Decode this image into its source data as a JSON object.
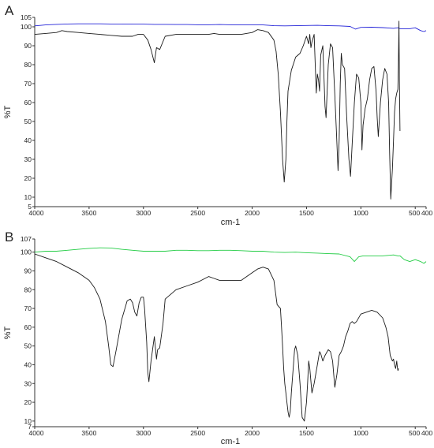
{
  "chart_data": [
    {
      "type": "line",
      "panel_label": "A",
      "xlabel": "cm-1",
      "ylabel": "%T",
      "xlim": [
        4000,
        400
      ],
      "ylim": [
        5,
        105
      ],
      "x_ticks": [
        4000,
        3500,
        3000,
        2500,
        2000,
        1500,
        1000,
        500,
        400
      ],
      "x_tick_labels": [
        "4000",
        "3500",
        "3000",
        "2500",
        "2000",
        "1500",
        "1000",
        "500",
        "400"
      ],
      "y_ticks": [
        5,
        10,
        20,
        30,
        40,
        50,
        60,
        70,
        80,
        90,
        100,
        105
      ],
      "y_tick_labels": [
        "5",
        "10",
        "20",
        "30",
        "40",
        "50",
        "60",
        "70",
        "80",
        "90",
        "100",
        "105"
      ],
      "grid": false,
      "series": [
        {
          "color": "#2424d8",
          "x": [
            4000,
            3900,
            3800,
            3700,
            3600,
            3500,
            3400,
            3300,
            3200,
            3100,
            3000,
            2900,
            2800,
            2700,
            2600,
            2500,
            2400,
            2300,
            2200,
            2100,
            2000,
            1900,
            1800,
            1700,
            1600,
            1500,
            1400,
            1300,
            1200,
            1100,
            1050,
            1000,
            900,
            800,
            700,
            660,
            640,
            600,
            550,
            500,
            450,
            420,
            400
          ],
          "y": [
            100.5,
            101,
            101.3,
            101.5,
            101.6,
            101.6,
            101.6,
            101.5,
            101.5,
            101.4,
            101.4,
            101.3,
            101.3,
            101.2,
            101.2,
            101.1,
            101.1,
            101.2,
            101.1,
            101,
            101,
            101,
            100.6,
            100.5,
            100.6,
            100.7,
            100.8,
            100.6,
            100.5,
            100.2,
            98.8,
            99.7,
            99.8,
            99.6,
            99.2,
            99.5,
            99,
            99,
            99,
            99.5,
            98,
            97.5,
            98
          ]
        },
        {
          "color": "#1a1a1a",
          "x": [
            4000,
            3900,
            3800,
            3750,
            3700,
            3600,
            3500,
            3400,
            3300,
            3200,
            3100,
            3050,
            3000,
            2960,
            2930,
            2900,
            2880,
            2850,
            2800,
            2700,
            2600,
            2500,
            2400,
            2350,
            2300,
            2200,
            2100,
            2000,
            1950,
            1900,
            1850,
            1800,
            1780,
            1760,
            1740,
            1720,
            1705,
            1690,
            1680,
            1670,
            1640,
            1600,
            1560,
            1530,
            1500,
            1480,
            1470,
            1460,
            1450,
            1430,
            1410,
            1400,
            1390,
            1380,
            1370,
            1350,
            1330,
            1320,
            1300,
            1280,
            1260,
            1240,
            1225,
            1210,
            1200,
            1190,
            1180,
            1170,
            1150,
            1130,
            1110,
            1095,
            1080,
            1060,
            1040,
            1020,
            1000,
            990,
            980,
            960,
            940,
            920,
            900,
            880,
            860,
            850,
            840,
            820,
            800,
            780,
            760,
            745,
            735,
            725,
            710,
            700,
            690,
            680,
            670,
            660,
            655,
            650,
            645,
            640
          ],
          "y": [
            96,
            96.5,
            97,
            98,
            97.5,
            97,
            96.5,
            96,
            95.5,
            95,
            95,
            96,
            96,
            93,
            88,
            81,
            89,
            88,
            95,
            96,
            96,
            96,
            96,
            96.5,
            96,
            96,
            96,
            97,
            98.5,
            98,
            97,
            93,
            87,
            75,
            55,
            30,
            18,
            30,
            50,
            66,
            77,
            84,
            86,
            90,
            95,
            91,
            96,
            89,
            92,
            96,
            65,
            75,
            72,
            66,
            85,
            90,
            58,
            52,
            80,
            91,
            89,
            64,
            45,
            24,
            40,
            70,
            86,
            80,
            78,
            52,
            30,
            21,
            38,
            60,
            75,
            73,
            60,
            35,
            48,
            57,
            62,
            72,
            78,
            79,
            66,
            52,
            42,
            60,
            72,
            78,
            75,
            60,
            33,
            9,
            25,
            40,
            55,
            62,
            65,
            67,
            80,
            103,
            70,
            45
          ]
        }
      ]
    },
    {
      "type": "line",
      "panel_label": "B",
      "xlabel": "cm-1",
      "ylabel": "%T",
      "xlim": [
        4000,
        400
      ],
      "ylim": [
        7,
        107
      ],
      "x_ticks": [
        4000,
        3500,
        3000,
        2500,
        2000,
        1500,
        1000,
        500,
        400
      ],
      "x_tick_labels": [
        "4000",
        "3500",
        "3000",
        "2500",
        "2000",
        "1500",
        "1000",
        "500",
        "400"
      ],
      "y_ticks": [
        7,
        10,
        20,
        30,
        40,
        50,
        60,
        70,
        80,
        90,
        100,
        107
      ],
      "y_tick_labels": [
        "7",
        "10",
        "20",
        "30",
        "40",
        "50",
        "60",
        "70",
        "80",
        "90",
        "100",
        "107"
      ],
      "grid": false,
      "series": [
        {
          "color": "#22cc44",
          "x": [
            4000,
            3900,
            3800,
            3700,
            3600,
            3500,
            3400,
            3300,
            3200,
            3100,
            3000,
            2900,
            2800,
            2700,
            2600,
            2500,
            2400,
            2300,
            2200,
            2100,
            2000,
            1900,
            1800,
            1700,
            1600,
            1500,
            1400,
            1300,
            1200,
            1100,
            1060,
            1020,
            980,
            900,
            800,
            700,
            660,
            640,
            600,
            550,
            500,
            450,
            420,
            400
          ],
          "y": [
            100,
            100.5,
            100.5,
            101,
            101.5,
            102,
            102.3,
            102.2,
            101.5,
            101,
            100.5,
            100.5,
            100.5,
            101,
            101,
            100.8,
            100.8,
            101,
            101,
            100.8,
            100.5,
            100.5,
            100,
            99.8,
            100,
            99.7,
            99.5,
            99.2,
            99,
            97.5,
            95,
            97.5,
            98,
            98,
            98,
            98.5,
            98,
            98,
            96,
            95,
            96,
            95,
            94,
            95
          ]
        },
        {
          "color": "#1a1a1a",
          "x": [
            4000,
            3900,
            3800,
            3700,
            3600,
            3500,
            3450,
            3400,
            3350,
            3320,
            3300,
            3280,
            3250,
            3200,
            3150,
            3120,
            3100,
            3080,
            3060,
            3040,
            3020,
            3000,
            2990,
            2970,
            2960,
            2950,
            2930,
            2900,
            2880,
            2870,
            2850,
            2820,
            2800,
            2700,
            2600,
            2500,
            2400,
            2350,
            2300,
            2200,
            2100,
            2000,
            1950,
            1900,
            1850,
            1800,
            1770,
            1740,
            1730,
            1720,
            1710,
            1700,
            1690,
            1680,
            1670,
            1660,
            1650,
            1640,
            1620,
            1610,
            1600,
            1580,
            1560,
            1540,
            1520,
            1500,
            1490,
            1480,
            1470,
            1450,
            1430,
            1400,
            1380,
            1370,
            1350,
            1330,
            1300,
            1280,
            1260,
            1250,
            1240,
            1220,
            1200,
            1180,
            1160,
            1140,
            1120,
            1100,
            1080,
            1060,
            1040,
            1000,
            950,
            900,
            850,
            800,
            770,
            750,
            730,
            710,
            700,
            690,
            680,
            670,
            665,
            660,
            658,
            655
          ],
          "y": [
            99,
            97,
            95,
            92,
            89,
            85,
            81,
            75,
            63,
            50,
            40,
            39,
            48,
            64,
            74,
            75,
            73,
            68,
            66,
            73,
            76,
            76,
            70,
            52,
            36,
            31,
            42,
            55,
            43,
            48,
            49,
            62,
            75,
            80,
            82,
            84,
            87,
            86,
            85,
            85,
            85,
            89,
            91,
            92,
            91,
            85,
            72,
            70,
            60,
            50,
            38,
            30,
            25,
            20,
            15,
            12,
            15,
            25,
            40,
            48,
            50,
            45,
            30,
            12,
            10,
            20,
            30,
            42,
            38,
            25,
            30,
            40,
            47,
            46,
            42,
            45,
            48,
            47,
            42,
            35,
            28,
            35,
            45,
            47,
            50,
            55,
            58,
            62,
            63,
            62,
            63,
            67,
            68,
            69,
            68,
            65,
            60,
            55,
            45,
            42,
            43,
            40,
            38,
            42,
            39,
            37,
            37,
            38
          ]
        }
      ]
    }
  ]
}
